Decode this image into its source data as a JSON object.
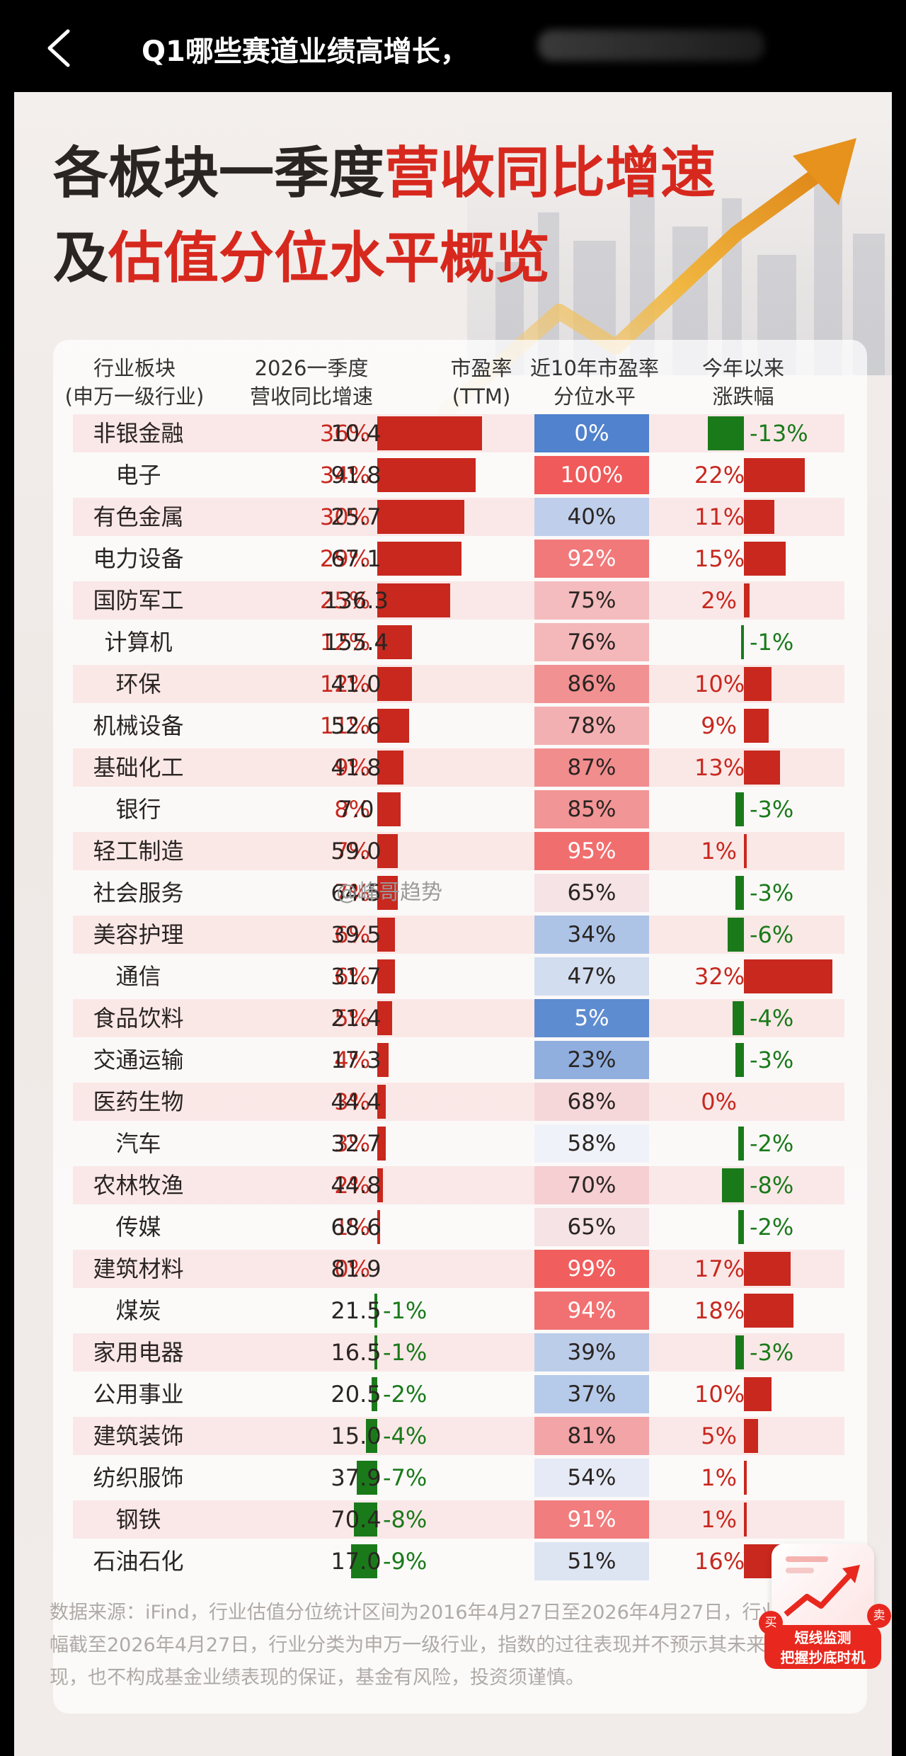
{
  "topbar": {
    "title": "Q1哪些赛道业绩高增长，"
  },
  "poster": {
    "headline_line1_a": "各板块一季度",
    "headline_line1_b": "营收同比增速",
    "headline_line2_a": "及",
    "headline_line2_b": "估值分位水平概览"
  },
  "headers": {
    "industry": "行业板块\n(申万一级行业)",
    "growth": "2026一季度\n营收同比增速",
    "pe": "市盈率\n(TTM)",
    "pct": "近10年市盈率\n分位水平",
    "change": "今年以来\n涨跌幅"
  },
  "colors": {
    "red": "#c8281e",
    "green": "#1a7a1a",
    "accent": "#d7281e"
  },
  "chart_data": {
    "type": "table",
    "rows": [
      {
        "name": "非银金融",
        "growth": "36%",
        "g": 36,
        "pe": "10.4",
        "pct": "0%",
        "p": 0,
        "chg": "-13%",
        "c": -13
      },
      {
        "name": "电子",
        "growth": "34%",
        "g": 34,
        "pe": "91.8",
        "pct": "100%",
        "p": 100,
        "chg": "22%",
        "c": 22
      },
      {
        "name": "有色金属",
        "growth": "30%",
        "g": 30,
        "pe": "25.7",
        "pct": "40%",
        "p": 40,
        "chg": "11%",
        "c": 11
      },
      {
        "name": "电力设备",
        "growth": "29%",
        "g": 29,
        "pe": "67.1",
        "pct": "92%",
        "p": 92,
        "chg": "15%",
        "c": 15
      },
      {
        "name": "国防军工",
        "growth": "25%",
        "g": 25,
        "pe": "136.3",
        "pct": "75%",
        "p": 75,
        "chg": "2%",
        "c": 2
      },
      {
        "name": "计算机",
        "growth": "12%",
        "g": 12,
        "pe": "155.4",
        "pct": "76%",
        "p": 76,
        "chg": "-1%",
        "c": -1
      },
      {
        "name": "环保",
        "growth": "12%",
        "g": 12,
        "pe": "41.0",
        "pct": "86%",
        "p": 86,
        "chg": "10%",
        "c": 10
      },
      {
        "name": "机械设备",
        "growth": "11%",
        "g": 11,
        "pe": "52.6",
        "pct": "78%",
        "p": 78,
        "chg": "9%",
        "c": 9
      },
      {
        "name": "基础化工",
        "growth": "9%",
        "g": 9,
        "pe": "41.8",
        "pct": "87%",
        "p": 87,
        "chg": "13%",
        "c": 13
      },
      {
        "name": "银行",
        "growth": "8%",
        "g": 8,
        "pe": "7.0",
        "pct": "85%",
        "p": 85,
        "chg": "-3%",
        "c": -3
      },
      {
        "name": "轻工制造",
        "growth": "7%",
        "g": 7,
        "pe": "59.0",
        "pct": "95%",
        "p": 95,
        "chg": "1%",
        "c": 1
      },
      {
        "name": "社会服务",
        "growth": "7%",
        "g": 7,
        "pe": "64.5",
        "pct": "65%",
        "p": 65,
        "chg": "-3%",
        "c": -3
      },
      {
        "name": "美容护理",
        "growth": "6%",
        "g": 6,
        "pe": "39.5",
        "pct": "34%",
        "p": 34,
        "chg": "-6%",
        "c": -6
      },
      {
        "name": "通信",
        "growth": "6%",
        "g": 6,
        "pe": "31.7",
        "pct": "47%",
        "p": 47,
        "chg": "32%",
        "c": 32
      },
      {
        "name": "食品饮料",
        "growth": "5%",
        "g": 5,
        "pe": "21.4",
        "pct": "5%",
        "p": 5,
        "chg": "-4%",
        "c": -4
      },
      {
        "name": "交通运输",
        "growth": "4%",
        "g": 4,
        "pe": "17.3",
        "pct": "23%",
        "p": 23,
        "chg": "-3%",
        "c": -3
      },
      {
        "name": "医药生物",
        "growth": "3%",
        "g": 3,
        "pe": "44.4",
        "pct": "68%",
        "p": 68,
        "chg": "0%",
        "c": 0
      },
      {
        "name": "汽车",
        "growth": "3%",
        "g": 3,
        "pe": "32.7",
        "pct": "58%",
        "p": 58,
        "chg": "-2%",
        "c": -2
      },
      {
        "name": "农林牧渔",
        "growth": "2%",
        "g": 2,
        "pe": "44.8",
        "pct": "70%",
        "p": 70,
        "chg": "-8%",
        "c": -8
      },
      {
        "name": "传媒",
        "growth": "1%",
        "g": 1,
        "pe": "68.6",
        "pct": "65%",
        "p": 65,
        "chg": "-2%",
        "c": -2
      },
      {
        "name": "建筑材料",
        "growth": "0%",
        "g": 0,
        "pe": "81.9",
        "pct": "99%",
        "p": 99,
        "chg": "17%",
        "c": 17
      },
      {
        "name": "煤炭",
        "growth": "-1%",
        "g": -1,
        "pe": "21.5",
        "pct": "94%",
        "p": 94,
        "chg": "18%",
        "c": 18
      },
      {
        "name": "家用电器",
        "growth": "-1%",
        "g": -1,
        "pe": "16.5",
        "pct": "39%",
        "p": 39,
        "chg": "-3%",
        "c": -3
      },
      {
        "name": "公用事业",
        "growth": "-2%",
        "g": -2,
        "pe": "20.5",
        "pct": "37%",
        "p": 37,
        "chg": "10%",
        "c": 10
      },
      {
        "name": "建筑装饰",
        "growth": "-4%",
        "g": -4,
        "pe": "15.0",
        "pct": "81%",
        "p": 81,
        "chg": "5%",
        "c": 5
      },
      {
        "name": "纺织服饰",
        "growth": "-7%",
        "g": -7,
        "pe": "37.9",
        "pct": "54%",
        "p": 54,
        "chg": "1%",
        "c": 1
      },
      {
        "name": "钢铁",
        "growth": "-8%",
        "g": -8,
        "pe": "70.4",
        "pct": "91%",
        "p": 91,
        "chg": "1%",
        "c": 1
      },
      {
        "name": "石油石化",
        "growth": "-9%",
        "g": -9,
        "pe": "17.0",
        "pct": "51%",
        "p": 51,
        "chg": "16%",
        "c": 16
      }
    ]
  },
  "watermark": "@峰哥趋势",
  "footer": {
    "line1": "数据来源：iFind，行业估值分位统计区间为2016年4月27日至2026年4月27日，行业涨跌",
    "line2": "幅截至2026年4月27日，行业分类为申万一级行业，指数的过往表现并不预示其未来表",
    "line3": "现，也不构成基金业绩表现的保证，基金有风险，投资须谨慎。"
  },
  "ad": {
    "line1": "短线监测",
    "line2": "把握抄底时机",
    "badge_buy": "买",
    "badge_sell": "卖"
  }
}
